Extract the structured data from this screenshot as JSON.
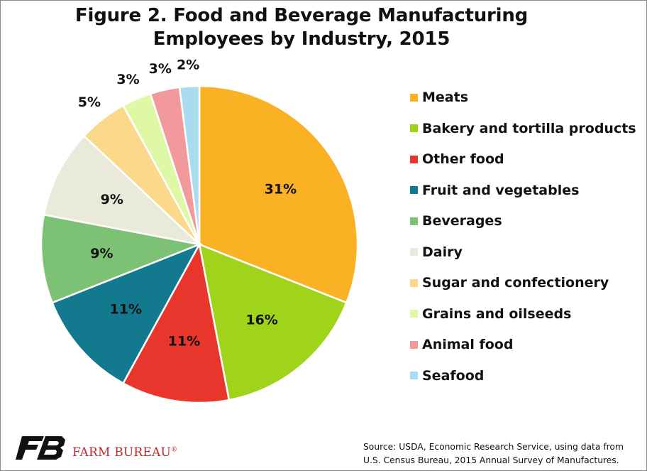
{
  "title": {
    "line1": "Figure 2. Food and Beverage Manufacturing",
    "line2": "Employees by Industry, 2015"
  },
  "chart_data": {
    "type": "pie",
    "title": "Figure 2. Food and Beverage Manufacturing Employees by Industry, 2015",
    "categories": [
      "Meats",
      "Bakery and tortilla products",
      "Other food",
      "Fruit and vegetables",
      "Beverages",
      "Dairy",
      "Sugar and confectionery",
      "Grains and oilseeds",
      "Animal food",
      "Seafood"
    ],
    "values": [
      31,
      16,
      11,
      11,
      9,
      9,
      5,
      3,
      3,
      2
    ],
    "labels": [
      "31%",
      "16%",
      "11%",
      "11%",
      "9%",
      "9%",
      "5%",
      "3%",
      "3%",
      "2%"
    ],
    "colors": [
      "#FBB124",
      "#A0D41A",
      "#E8362C",
      "#12798F",
      "#7CC174",
      "#E9EAD9",
      "#FCD98A",
      "#DEF8A6",
      "#F2999B",
      "#A9DCF0"
    ],
    "legend_position": "right",
    "start_angle_deg": 0,
    "direction": "clockwise"
  },
  "source": {
    "line1": "Source: USDA, Economic Research Service, using data from",
    "line2": "U.S. Census Bureau, 2015 Annual Survey of Manufactures."
  },
  "logo": {
    "name": "FARM BUREAU",
    "reg": "®",
    "icon": "farm-bureau-fb-icon",
    "color": "#C0272D"
  }
}
